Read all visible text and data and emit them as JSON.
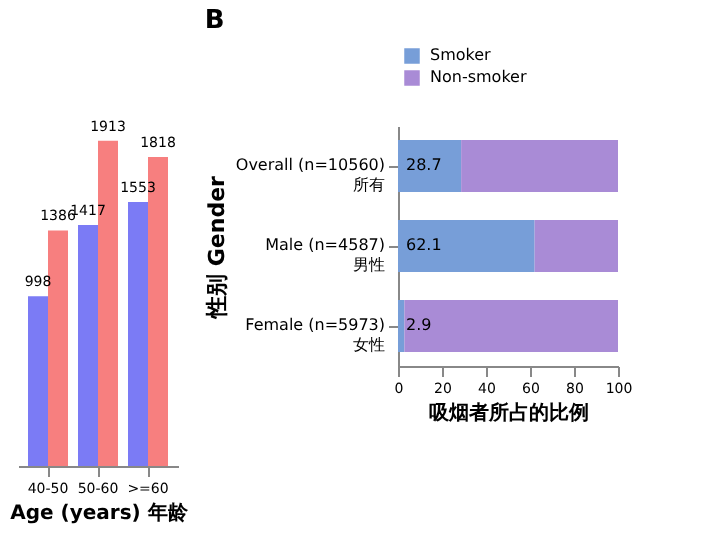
{
  "chart_data": [
    {
      "type": "bar",
      "categories": [
        "40-50",
        "50-60",
        ">=60"
      ],
      "xlabel": "Age (years) 年龄",
      "tick_labels": "x",
      "data_labels": true,
      "legend": false,
      "grid": false,
      "series": [
        {
          "color": "#7b7bf5",
          "values": [
            998,
            1417,
            1553
          ]
        },
        {
          "color": "#f77f7f",
          "values": [
            1386,
            1913,
            1818
          ]
        }
      ]
    },
    {
      "type": "bar",
      "title": "B",
      "orientation": "horizontal",
      "stacked": true,
      "categories": [
        "Overall (n=10560)\n所有",
        "Male (n=4587)\n男性",
        "Female (n=5973)\n女性"
      ],
      "xlabel": "吸烟者所占的比例",
      "ylabel": "性别 Gender",
      "xlim": [
        0,
        100
      ],
      "xticks": [
        0,
        20,
        40,
        60,
        80,
        100
      ],
      "legend": "top",
      "grid": false,
      "series": [
        {
          "name": "Smoker",
          "color": "#779ed8",
          "values": [
            28.7,
            62.1,
            2.9
          ],
          "value_labels": [
            "28.7",
            "62.1",
            "2.9"
          ]
        },
        {
          "name": "Non-smoker",
          "color": "#a98bd6",
          "values": [
            71.3,
            37.9,
            97.1
          ]
        }
      ]
    }
  ]
}
